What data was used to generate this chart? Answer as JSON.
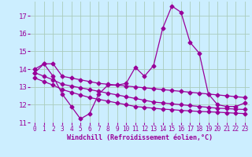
{
  "x": [
    0,
    1,
    2,
    3,
    4,
    5,
    6,
    7,
    8,
    9,
    10,
    11,
    12,
    13,
    14,
    15,
    16,
    17,
    18,
    19,
    20,
    21,
    22,
    23
  ],
  "line_zigzag": [
    13.8,
    14.3,
    13.6,
    12.6,
    11.9,
    11.2,
    11.5,
    12.6,
    13.1,
    13.1,
    13.2,
    14.1,
    13.6,
    14.2,
    16.3,
    17.55,
    17.2,
    15.5,
    14.9,
    12.6,
    12.0,
    11.9,
    11.9,
    12.1
  ],
  "line_straight1": [
    14.0,
    14.3,
    14.3,
    13.6,
    13.5,
    13.4,
    13.3,
    13.2,
    13.15,
    13.1,
    13.05,
    13.0,
    12.95,
    12.9,
    12.85,
    12.8,
    12.75,
    12.7,
    12.65,
    12.6,
    12.55,
    12.5,
    12.45,
    12.4
  ],
  "line_straight2": [
    13.8,
    13.6,
    13.4,
    13.15,
    13.05,
    12.95,
    12.85,
    12.75,
    12.65,
    12.55,
    12.45,
    12.35,
    12.25,
    12.15,
    12.1,
    12.05,
    12.0,
    11.95,
    11.9,
    11.85,
    11.8,
    11.78,
    11.75,
    11.73
  ],
  "line_straight3": [
    13.5,
    13.3,
    13.1,
    12.85,
    12.7,
    12.55,
    12.4,
    12.3,
    12.2,
    12.1,
    12.0,
    11.9,
    11.85,
    11.8,
    11.75,
    11.72,
    11.68,
    11.65,
    11.62,
    11.6,
    11.58,
    11.55,
    11.52,
    11.5
  ],
  "bg_color": "#cceeff",
  "grid_color": "#aaccbb",
  "line_color": "#990099",
  "xlabel": "Windchill (Refroidissement éolien,°C)",
  "ylim_min": 11.0,
  "ylim_max": 17.8,
  "xlim_min": -0.5,
  "xlim_max": 23.5,
  "yticks": [
    11,
    12,
    13,
    14,
    15,
    16,
    17
  ],
  "xticks": [
    0,
    1,
    2,
    3,
    4,
    5,
    6,
    7,
    8,
    9,
    10,
    11,
    12,
    13,
    14,
    15,
    16,
    17,
    18,
    19,
    20,
    21,
    22,
    23
  ],
  "marker": "D",
  "markersize": 2.5,
  "linewidth": 0.9,
  "tick_fontsize": 5.5,
  "xlabel_fontsize": 6.0
}
